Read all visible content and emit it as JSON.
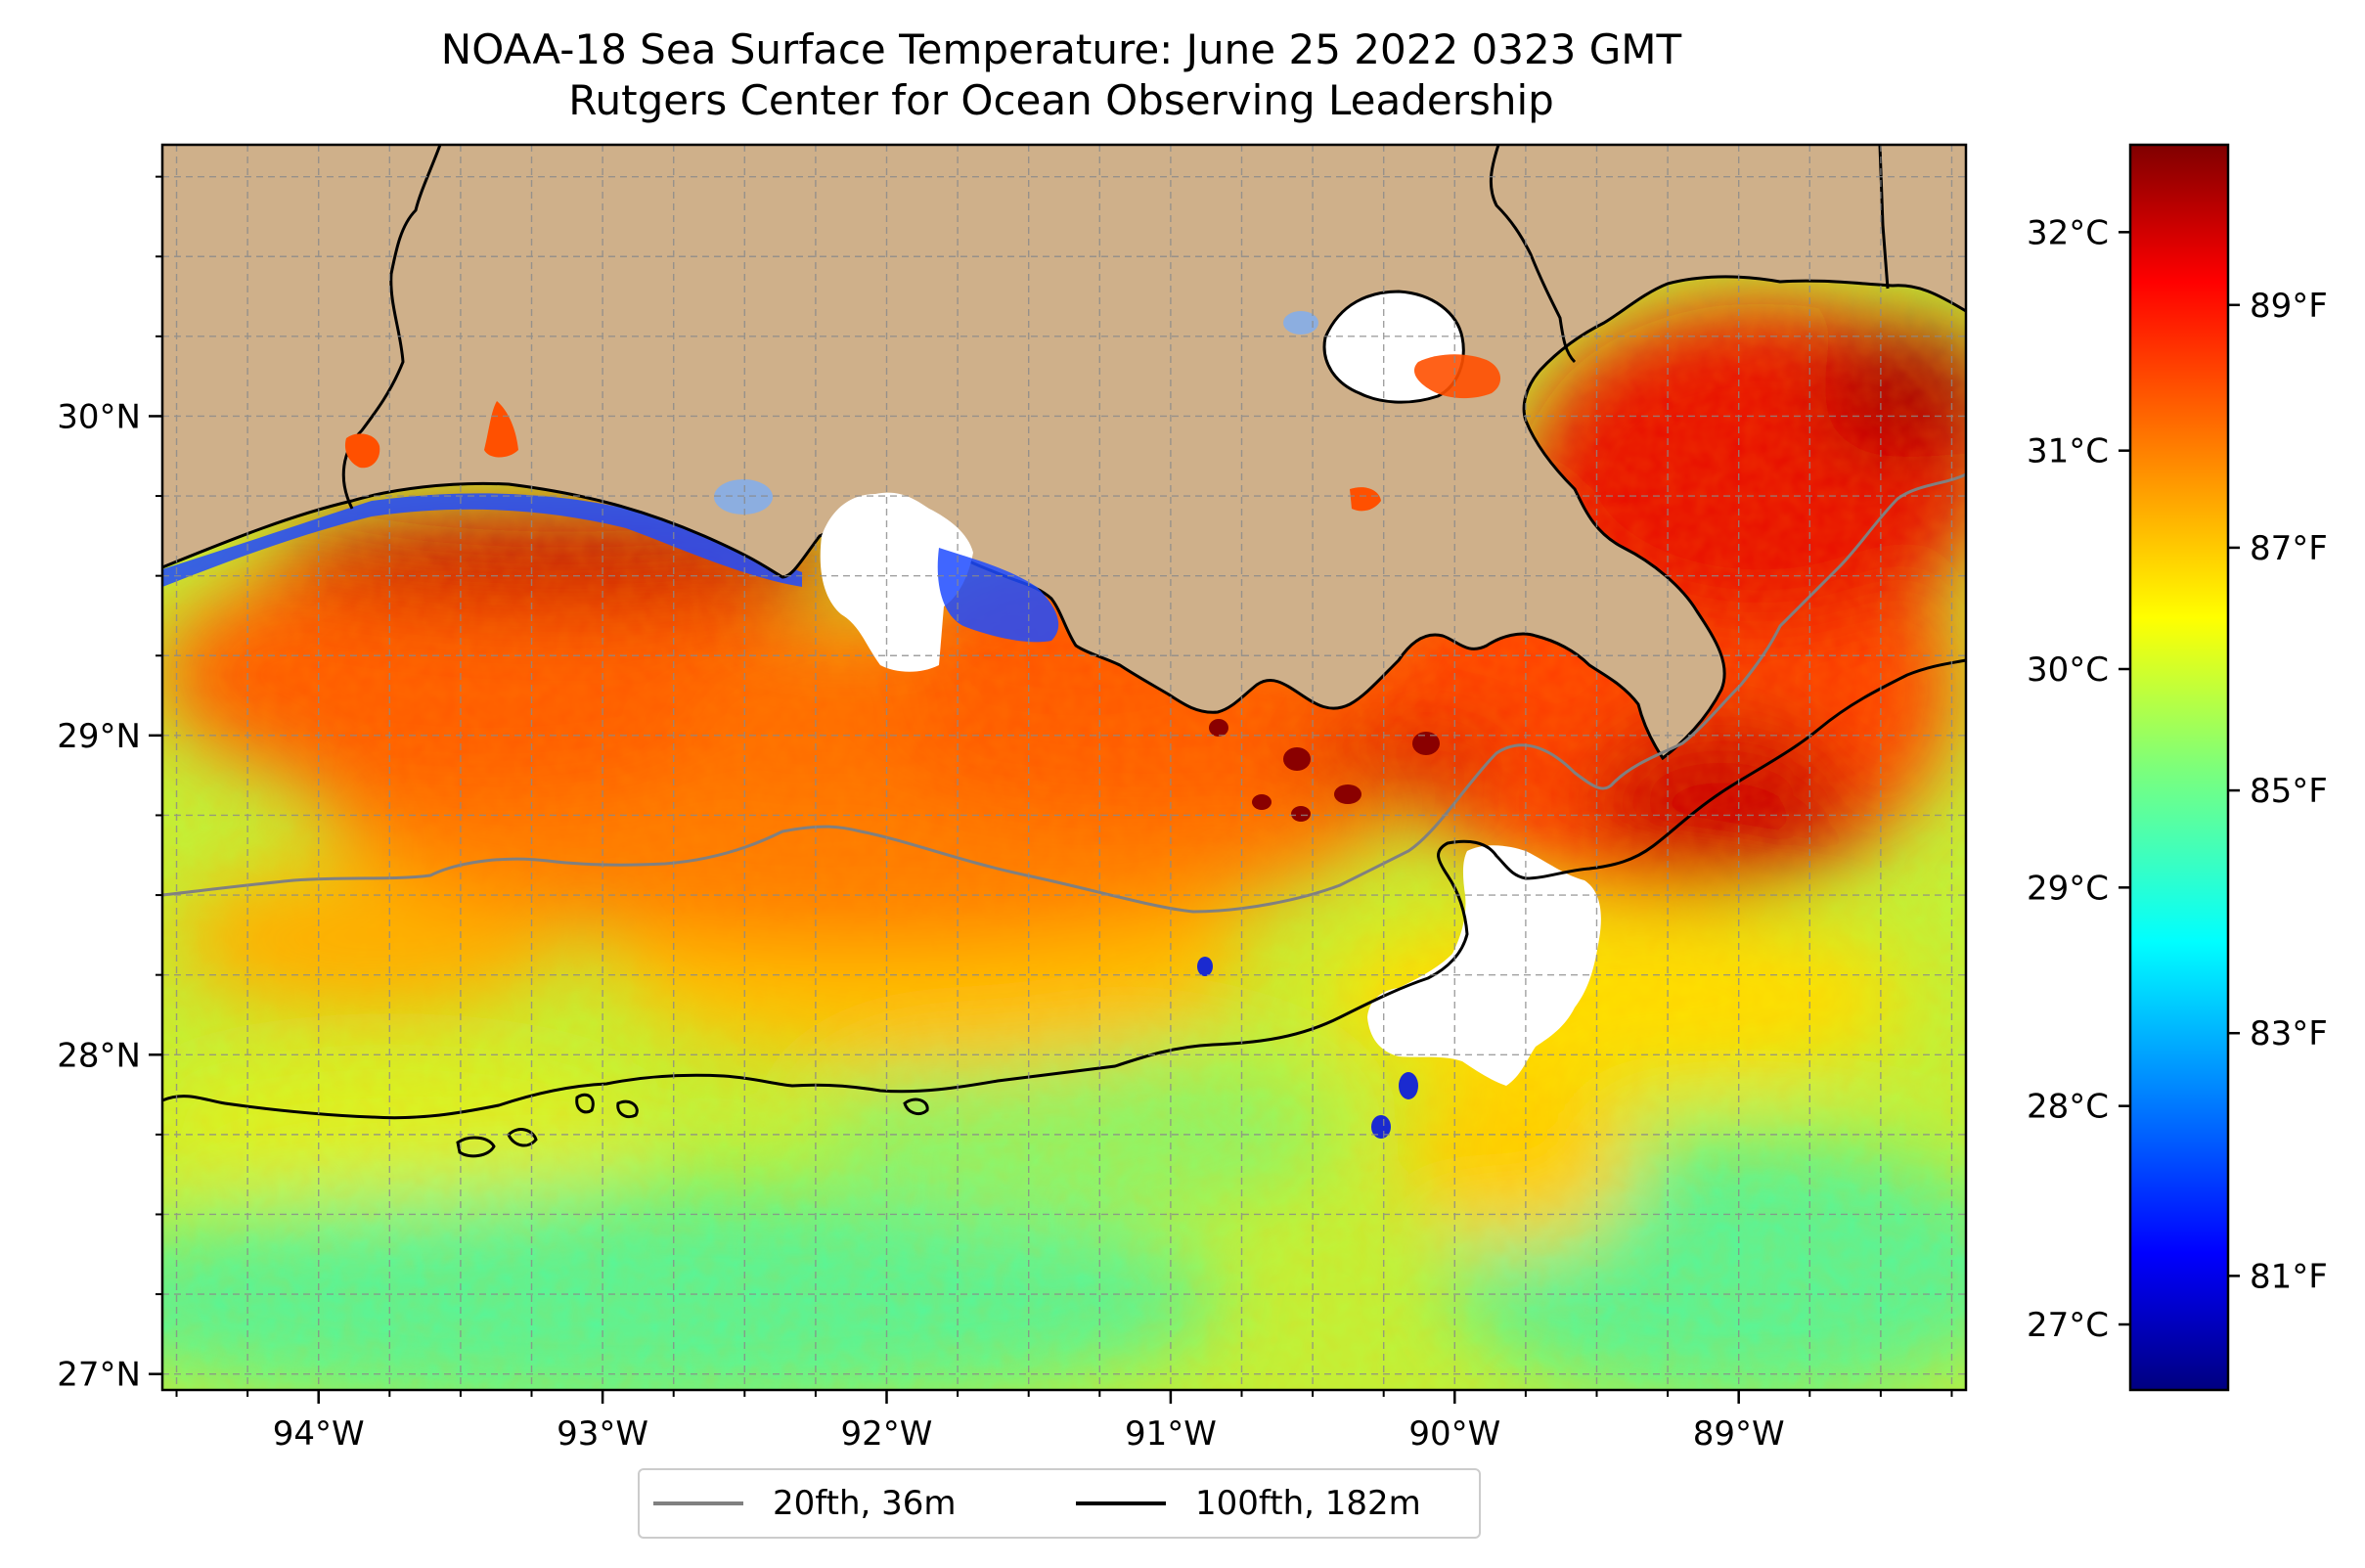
{
  "title": {
    "line1": "NOAA-18 Sea Surface Temperature: June 25 2022 0323 GMT",
    "line2": "Rutgers Center for Ocean Observing Leadership"
  },
  "map": {
    "lon_range": [
      -94.55,
      -88.2
    ],
    "lat_range": [
      26.95,
      30.85
    ],
    "lon_ticks": [
      "94°W",
      "93°W",
      "92°W",
      "91°W",
      "90°W",
      "89°W"
    ],
    "lat_ticks": [
      "27°N",
      "28°N",
      "29°N",
      "30°N"
    ],
    "land_color": "#cfb08a",
    "cloud_color": "#ffffff",
    "gridlines": "dashed"
  },
  "colorbar": {
    "colormap": "jet",
    "celsius_ticks": [
      "27°C",
      "28°C",
      "29°C",
      "30°C",
      "31°C",
      "32°C"
    ],
    "fahrenheit_ticks": [
      "81°F",
      "83°F",
      "85°F",
      "87°F",
      "89°F"
    ],
    "range_c": [
      26.7,
      32.4
    ]
  },
  "legend": {
    "items": [
      {
        "label": "20fth, 36m",
        "color": "#808080"
      },
      {
        "label": "100fth, 182m",
        "color": "#000000"
      }
    ]
  }
}
